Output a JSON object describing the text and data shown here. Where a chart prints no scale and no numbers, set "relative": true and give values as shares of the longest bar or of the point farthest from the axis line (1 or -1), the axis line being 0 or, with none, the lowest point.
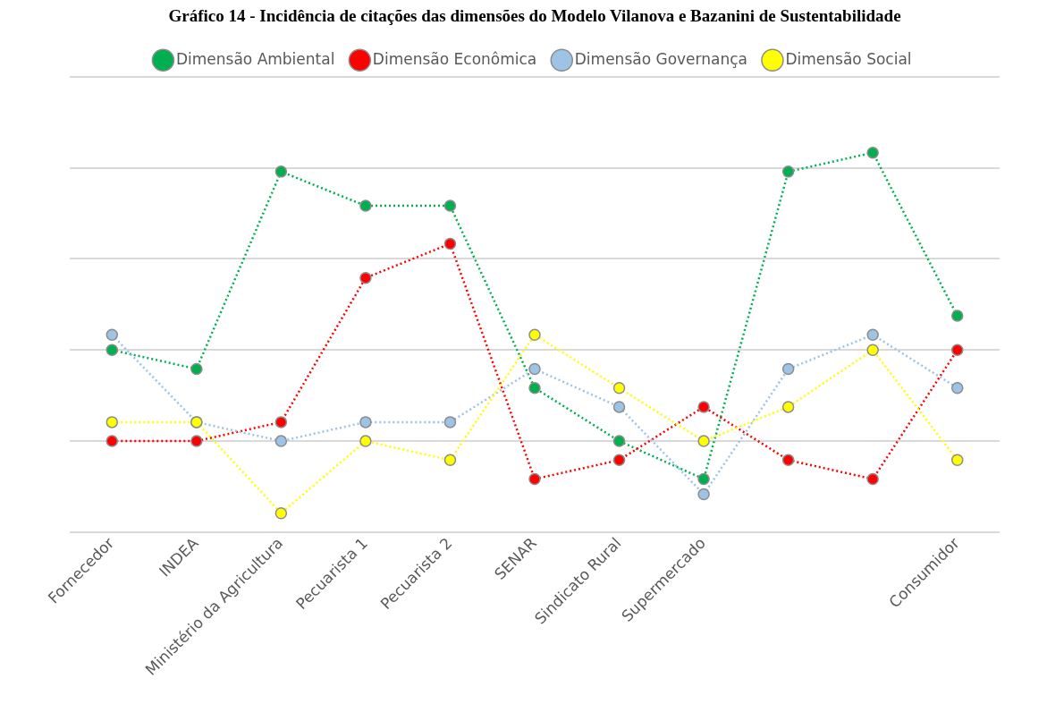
{
  "chart_data": {
    "type": "line",
    "title": "Gráfico 14 - Incidência de citações das dimensões do Modelo Vilanova e Bazanini de Sustentabilidade",
    "categories": [
      "Fornecedor",
      "INDEA",
      "Ministério da Agricultura",
      "Pecuarista 1",
      "Pecuarista 2",
      "SENAR",
      "Sindicato Rural",
      "Supermercado",
      null,
      null,
      "Consumidor"
    ],
    "relative": true,
    "grid": "y",
    "legend": "top",
    "marker": "circle",
    "line_style": "dotted",
    "series": [
      {
        "name": "Dimensão Ambiental",
        "color": "#00b050",
        "values": [
          0.48,
          0.43,
          0.95,
          0.86,
          0.86,
          0.38,
          0.24,
          0.14,
          0.95,
          1,
          0.57
        ]
      },
      {
        "name": "Dimensão Econômica",
        "color": "#ff0000",
        "values": [
          0.24,
          0.24,
          0.29,
          0.67,
          0.76,
          0.14,
          0.19,
          0.33,
          0.19,
          0.14,
          0.48
        ]
      },
      {
        "name": "Dimensão Governança",
        "color": "#9dc3e6",
        "values": [
          0.52,
          0.29,
          0.24,
          0.29,
          0.29,
          0.43,
          0.33,
          0.1,
          0.43,
          0.52,
          0.38
        ]
      },
      {
        "name": "Dimensão Social",
        "color": "#ffff00",
        "values": [
          0.29,
          0.29,
          0.05,
          0.24,
          0.19,
          0.52,
          0.38,
          0.24,
          0.33,
          0.48,
          0.19
        ]
      }
    ]
  }
}
